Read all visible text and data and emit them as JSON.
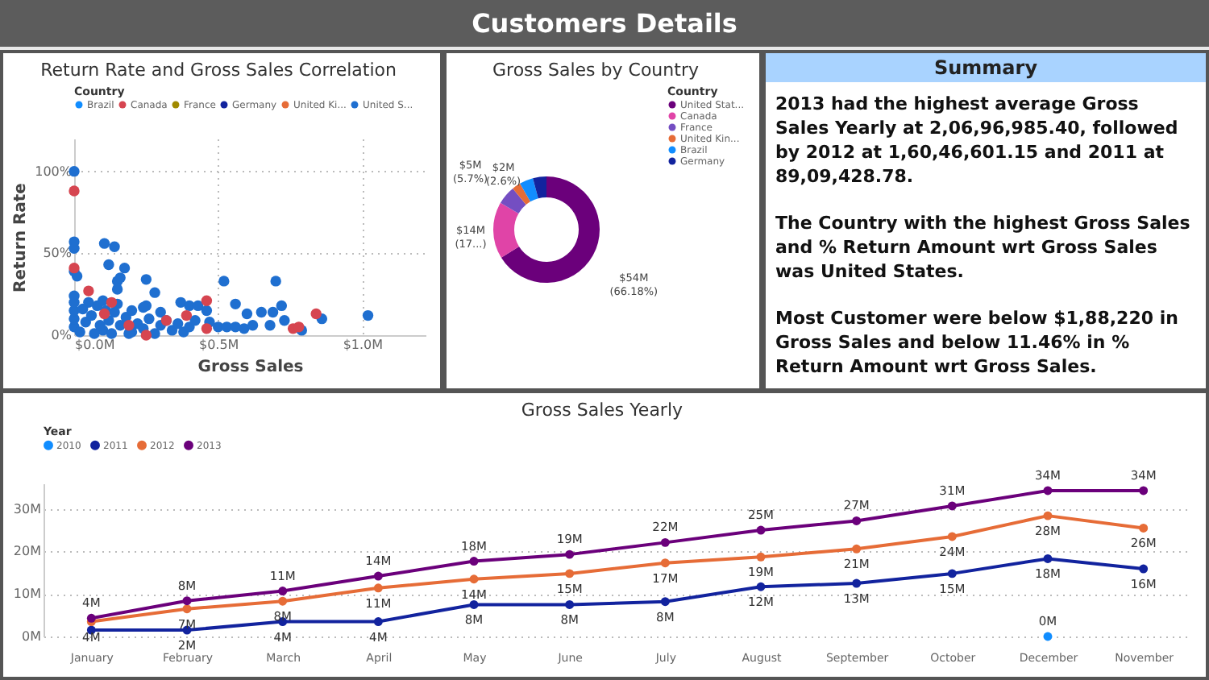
{
  "chart_data": [
    {
      "type": "other",
      "title": "Customers Details"
    },
    {
      "type": "scatter",
      "title": "Return Rate and Gross Sales Correlation",
      "xlabel": "Gross Sales",
      "ylabel": "Return Rate",
      "legend_title": "Country",
      "legend": "top left",
      "grid": true,
      "marker": "circle",
      "xlim": [
        0,
        1.22
      ],
      "xticks": [
        {
          "value": 0,
          "label": "$0.0M"
        },
        {
          "value": 0.5,
          "label": "$0.5M"
        },
        {
          "value": 1,
          "label": "$1.0M"
        }
      ],
      "ylim": [
        0,
        120
      ],
      "yticks": [
        {
          "value": 0,
          "label": "0%"
        },
        {
          "value": 50,
          "label": "50%"
        },
        {
          "value": 100,
          "label": "100%"
        }
      ],
      "series": [
        {
          "name": "Brazil",
          "color": "#118dff"
        },
        {
          "name": "Canada",
          "color": "#d64550",
          "x": [
            0,
            0,
            0.05,
            0.105,
            0.13,
            0.46,
            0.46,
            0.39,
            0.25,
            0.84,
            0.76,
            0.78,
            0.19,
            0.32
          ],
          "values": [
            88,
            41,
            27,
            13,
            20,
            21,
            4,
            12,
            0,
            13,
            4,
            5,
            6,
            9
          ]
        },
        {
          "name": "France",
          "color": "#a08a00"
        },
        {
          "name": "Germany",
          "color": "#12239e"
        },
        {
          "name": "United Ki...",
          "color": "#e66c37"
        },
        {
          "name": "United S...",
          "color": "#1f6fd0",
          "x": [
            0,
            0,
            0,
            0,
            0.01,
            0.105,
            0.14,
            0.12,
            0.175,
            0.15,
            0.16,
            0.15,
            0.25,
            0.28,
            0.52,
            0.7,
            0.37,
            0.4,
            0.43,
            0.46,
            0.56,
            0.6,
            0.65,
            0.69,
            0.72,
            0.73,
            0.86,
            1.02,
            0.47,
            0.5,
            0.53,
            0.56,
            0.59,
            0.62,
            0.68,
            0.79,
            0.25,
            0.24,
            0,
            0,
            0,
            0,
            0,
            0.02,
            0.04,
            0.06,
            0.08,
            0.1,
            0.12,
            0.14,
            0.16,
            0.18,
            0.2,
            0.22,
            0.24,
            0.26,
            0.28,
            0.3,
            0.32,
            0.34,
            0.36,
            0.38,
            0.4,
            0.42,
            0.05,
            0.1,
            0.15,
            0.03,
            0.07,
            0.13,
            0.19,
            0.09,
            0.11,
            0.2,
            0.3
          ],
          "values": [
            100,
            57,
            53,
            39,
            36,
            56,
            54,
            43,
            41,
            33,
            35,
            28,
            34,
            26,
            33,
            33,
            20,
            18,
            18,
            15,
            19,
            13,
            14,
            14,
            18,
            9,
            10,
            12,
            8,
            5,
            5,
            5,
            4,
            6,
            6,
            3,
            18,
            17,
            5,
            10,
            15,
            20,
            24,
            2,
            8,
            12,
            18,
            3,
            9,
            14,
            6,
            11,
            2,
            7,
            4,
            10,
            1,
            6,
            9,
            3,
            7,
            2,
            5,
            9,
            20,
            21,
            19,
            16,
            1,
            1,
            1,
            6,
            15,
            15,
            14
          ]
        }
      ]
    },
    {
      "type": "donut",
      "title": "Gross Sales by Country",
      "legend_title": "Country",
      "legend": "right",
      "categories": [
        "United Stat...",
        "Canada",
        "France",
        "United Kin...",
        "Brazil",
        "Germany"
      ],
      "values": [
        66.18,
        17.2,
        5.7,
        2.6,
        4.2,
        4.12
      ],
      "colors": [
        "#6b007b",
        "#e044a7",
        "#744ec2",
        "#e66c37",
        "#118dff",
        "#12239e"
      ],
      "value_labels": [
        "$54M (66.18%)",
        "$14M (17...)",
        "$5M (5.7%)",
        "$2M (2.6%)",
        null,
        null
      ]
    },
    {
      "type": "other",
      "title": "Summary",
      "annotations": [
        "2013 had the highest average Gross Sales Yearly at 2,06,96,985.40, followed by 2012 at 1,60,46,601.15 and 2011 at 89,09,428.78.",
        "The Country with the highest Gross Sales and % Return Amount wrt Gross Sales was United States.",
        "Most Customer were below $1,88,220 in Gross Sales and below 11.46% in % Return Amount wrt Gross Sales."
      ]
    },
    {
      "type": "line",
      "title": "Gross Sales Yearly",
      "legend_title": "Year",
      "legend": "top left",
      "grid": "y",
      "marker": "circle",
      "line_style": "solid",
      "categories": [
        "January",
        "February",
        "March",
        "April",
        "May",
        "June",
        "July",
        "August",
        "September",
        "October",
        "December",
        "November"
      ],
      "ylim": [
        0,
        36
      ],
      "yticks": [
        {
          "value": 0,
          "label": "0M"
        },
        {
          "value": 10,
          "label": "10M"
        },
        {
          "value": 20,
          "label": "20M"
        },
        {
          "value": 30,
          "label": "30M"
        }
      ],
      "series": [
        {
          "name": "2010",
          "color": "#118dff",
          "values": [
            null,
            null,
            null,
            null,
            null,
            null,
            null,
            null,
            null,
            null,
            0,
            null
          ],
          "value_labels": [
            null,
            null,
            null,
            null,
            null,
            null,
            null,
            null,
            null,
            null,
            "0M",
            null
          ]
        },
        {
          "name": "2011",
          "color": "#12239e",
          "values": [
            1.5,
            1.5,
            3.5,
            3.5,
            7.5,
            7.5,
            8.2,
            11.7,
            12.5,
            14.8,
            18.3,
            15.9
          ],
          "value_labels": [
            null,
            "2M",
            "4M",
            "4M",
            "8M",
            "8M",
            "8M",
            "12M",
            "13M",
            "15M",
            "18M",
            "16M"
          ]
        },
        {
          "name": "2012",
          "color": "#e66c37",
          "values": [
            3.5,
            6.5,
            8.3,
            11.4,
            13.5,
            14.8,
            17.3,
            18.7,
            20.6,
            23.5,
            28.4,
            25.5
          ],
          "value_labels": [
            "4M",
            "7M",
            "8M",
            "11M",
            "14M",
            "15M",
            "17M",
            "19M",
            "21M",
            "24M",
            "28M",
            "26M"
          ]
        },
        {
          "name": "2013",
          "color": "#6b007b",
          "values": [
            4.3,
            8.4,
            10.7,
            14.2,
            17.7,
            19.3,
            22.1,
            25,
            27.2,
            30.7,
            34.3,
            34.3
          ],
          "value_labels": [
            "4M",
            "8M",
            "11M",
            "14M",
            "18M",
            "19M",
            "22M",
            "25M",
            "27M",
            "31M",
            "34M",
            "34M"
          ]
        }
      ]
    }
  ]
}
